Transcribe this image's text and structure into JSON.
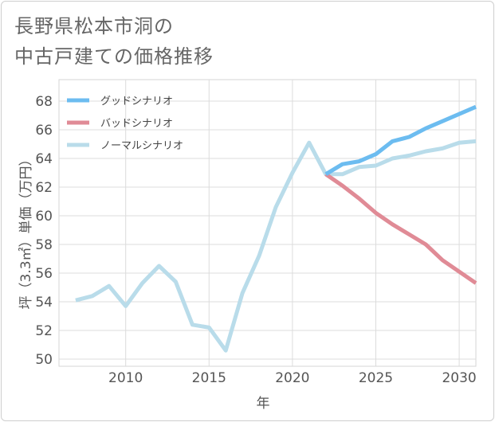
{
  "title": {
    "line1": "長野県松本市洞の",
    "line2": "中古戸建ての価格推移"
  },
  "chart_data": {
    "type": "line",
    "xlabel": "年",
    "ylabel": "坪（3.3㎡）単価（万円）",
    "xlim": [
      2006,
      2031
    ],
    "ylim": [
      49.5,
      69.5
    ],
    "xticks": [
      2010,
      2015,
      2020,
      2025,
      2030
    ],
    "yticks": [
      50,
      52,
      54,
      56,
      58,
      60,
      62,
      64,
      66,
      68
    ],
    "grid": true,
    "legend_position": "top-left",
    "series": [
      {
        "name": "グッドシナリオ",
        "color": "#6cbcf0",
        "x": [
          2022,
          2023,
          2024,
          2025,
          2026,
          2027,
          2028,
          2029,
          2030,
          2031
        ],
        "values": [
          62.9,
          63.6,
          63.8,
          64.3,
          65.2,
          65.5,
          66.1,
          66.6,
          67.1,
          67.6
        ]
      },
      {
        "name": "バッドシナリオ",
        "color": "#e08b96",
        "x": [
          2022,
          2023,
          2024,
          2025,
          2026,
          2027,
          2028,
          2029,
          2030,
          2031
        ],
        "values": [
          62.9,
          62.1,
          61.2,
          60.2,
          59.4,
          58.7,
          58.0,
          56.9,
          56.1,
          55.3
        ]
      },
      {
        "name": "ノーマルシナリオ",
        "color": "#b9dcea",
        "x": [
          2007,
          2008,
          2009,
          2010,
          2011,
          2012,
          2013,
          2014,
          2015,
          2016,
          2017,
          2018,
          2019,
          2020,
          2021,
          2022,
          2023,
          2024,
          2025,
          2026,
          2027,
          2028,
          2029,
          2030,
          2031
        ],
        "values": [
          54.1,
          54.4,
          55.1,
          53.7,
          55.3,
          56.5,
          55.4,
          52.4,
          52.2,
          50.6,
          54.6,
          57.2,
          60.6,
          63.0,
          65.1,
          62.9,
          62.9,
          63.4,
          63.5,
          64.0,
          64.2,
          64.5,
          64.7,
          65.1,
          65.2
        ]
      }
    ]
  }
}
